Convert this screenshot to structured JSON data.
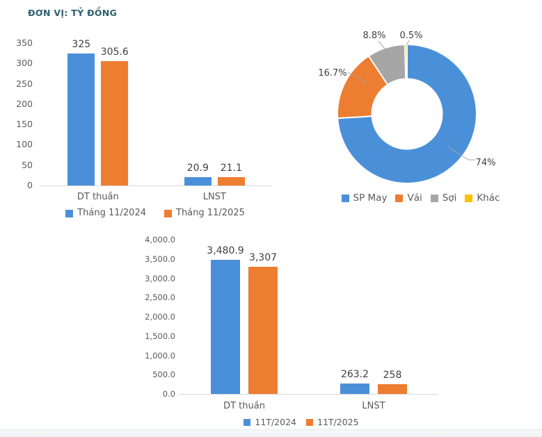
{
  "page": {
    "unit_label": "ĐƠN VỊ: TỶ ĐỒNG"
  },
  "colors": {
    "blue": "#4A90D9",
    "orange": "#ED7D31",
    "gray": "#A6A6A6",
    "yellow": "#FFC000",
    "title": "#2E5F6E",
    "axis_text": "#595959",
    "data_label": "#404040",
    "axis_line": "#D9D9D9",
    "leader_line": "#A6A6A6"
  },
  "chart_data": [
    {
      "type": "bar",
      "categories": [
        "DT thuần",
        "LNST"
      ],
      "series": [
        {
          "name": "Tháng 11/2024",
          "color": "blue",
          "values": [
            325,
            20.9
          ],
          "value_labels": [
            "325",
            "20.9"
          ]
        },
        {
          "name": "Tháng 11/2025",
          "color": "orange",
          "values": [
            305.6,
            21.1
          ],
          "value_labels": [
            "305.6",
            "21.1"
          ]
        }
      ],
      "ylim": [
        0,
        350
      ],
      "yticks": [
        "0",
        "50",
        "100",
        "150",
        "200",
        "250",
        "300",
        "350"
      ],
      "grid": false,
      "legend_position": "bottom"
    },
    {
      "type": "pie",
      "subtype": "donut",
      "labels": [
        "SP May",
        "Vải",
        "Sợi",
        "Khác"
      ],
      "values": [
        74,
        16.7,
        8.8,
        0.5
      ],
      "percent_labels": [
        "74%",
        "16.7%",
        "8.8%",
        "0.5%"
      ],
      "colors": [
        "blue",
        "orange",
        "gray",
        "yellow"
      ],
      "legend_position": "bottom"
    },
    {
      "type": "bar",
      "categories": [
        "DT thuần",
        "LNST"
      ],
      "series": [
        {
          "name": "11T/2024",
          "color": "blue",
          "values": [
            3480.9,
            263.2
          ],
          "value_labels": [
            "3,480.9",
            "263.2"
          ]
        },
        {
          "name": "11T/2025",
          "color": "orange",
          "values": [
            3307,
            258
          ],
          "value_labels": [
            "3,307",
            "258"
          ]
        }
      ],
      "ylim": [
        0,
        4000
      ],
      "yticks": [
        "0.0",
        "500.0",
        "1,000.0",
        "1,500.0",
        "2,000.0",
        "2,500.0",
        "3,000.0",
        "3,500.0",
        "4,000.0"
      ],
      "grid": false,
      "legend_position": "bottom"
    }
  ]
}
